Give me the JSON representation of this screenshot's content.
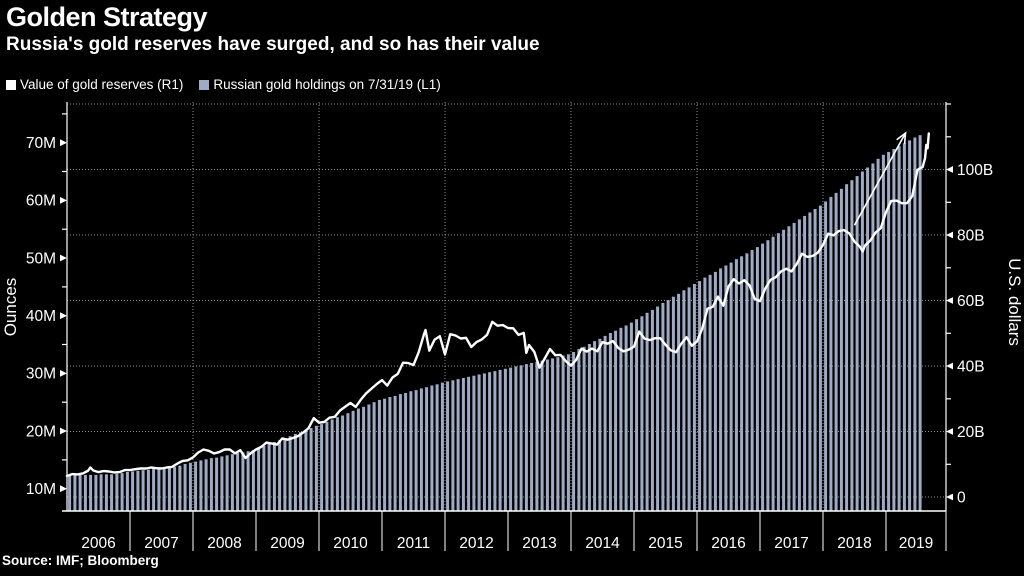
{
  "header": {
    "title": "Golden Strategy",
    "subtitle": "Russia's gold reserves have surged, and so has their value"
  },
  "legend": [
    {
      "label": "Value of gold reserves (R1)",
      "swatch": "#ffffff"
    },
    {
      "label": "Russian gold holdings on 7/31/19 (L1)",
      "swatch": "#9fabc4"
    }
  ],
  "source": "Source: IMF; Bloomberg",
  "colors": {
    "background": "#000000",
    "bar": "#9fabc4",
    "line": "#ffffff",
    "grid": "#8f8f8f",
    "axis": "#ffffff"
  },
  "chart_data": {
    "type": "combo",
    "title": "Golden Strategy",
    "subtitle": "Russia's gold reserves have surged, and so has their value",
    "legend_position": "top-left",
    "grid": "dotted",
    "x_axis": {
      "years": [
        2006,
        2007,
        2008,
        2009,
        2010,
        2011,
        2012,
        2013,
        2014,
        2015,
        2016,
        2017,
        2018,
        2019
      ],
      "gridline_years": [
        2008,
        2010,
        2012,
        2014,
        2016,
        2018
      ],
      "range": [
        2006.0,
        2019.95
      ]
    },
    "left_axis": {
      "label": "Ounces",
      "unit": "million troy ounces",
      "major_ticks": [
        {
          "v": 10,
          "label": "10M"
        },
        {
          "v": 20,
          "label": "20M"
        },
        {
          "v": 30,
          "label": "30M"
        },
        {
          "v": 40,
          "label": "40M"
        },
        {
          "v": 50,
          "label": "50M"
        },
        {
          "v": 60,
          "label": "60M"
        },
        {
          "v": 70,
          "label": "70M"
        }
      ],
      "minor_ticks": [
        15,
        25,
        35,
        45,
        55,
        65,
        75
      ]
    },
    "right_axis": {
      "label": "U.S. dollars",
      "unit": "billion USD",
      "major_ticks": [
        {
          "v": 0,
          "label": "0"
        },
        {
          "v": 20,
          "label": "20B"
        },
        {
          "v": 40,
          "label": "40B"
        },
        {
          "v": 60,
          "label": "60B"
        },
        {
          "v": 80,
          "label": "80B"
        },
        {
          "v": 100,
          "label": "100B"
        }
      ],
      "minor_ticks": [
        10,
        30,
        50,
        70,
        90,
        110,
        120
      ],
      "gridline_values": [
        0,
        20,
        40,
        60,
        80,
        100,
        120
      ]
    },
    "series": [
      {
        "name": "Russian gold holdings on 7/31/19 (L1)",
        "type": "bar",
        "axis": "left",
        "color": "#9fabc4",
        "start_year": 2006,
        "interval": "monthly",
        "values": [
          12.3,
          12.3,
          12.4,
          12.4,
          12.4,
          12.4,
          12.5,
          12.5,
          12.5,
          12.6,
          12.7,
          12.9,
          13.0,
          13.1,
          13.2,
          13.3,
          13.4,
          13.4,
          13.5,
          13.7,
          13.8,
          14.0,
          14.3,
          14.5,
          14.7,
          14.9,
          15.1,
          15.3,
          15.4,
          15.6,
          15.8,
          16.0,
          16.2,
          16.3,
          16.5,
          16.7,
          17.1,
          17.4,
          17.8,
          18.1,
          18.4,
          18.8,
          19.1,
          19.5,
          19.8,
          20.2,
          20.5,
          20.9,
          21.2,
          21.6,
          22.0,
          22.4,
          22.7,
          23.1,
          23.5,
          23.9,
          24.2,
          24.6,
          25.0,
          25.4,
          25.6,
          25.9,
          26.1,
          26.4,
          26.6,
          26.9,
          27.1,
          27.4,
          27.6,
          27.9,
          28.1,
          28.4,
          28.6,
          28.8,
          29.0,
          29.2,
          29.4,
          29.6,
          29.8,
          30.0,
          30.2,
          30.4,
          30.6,
          30.8,
          31.0,
          31.2,
          31.4,
          31.6,
          31.8,
          32.0,
          32.2,
          32.4,
          32.6,
          32.8,
          33.1,
          33.3,
          33.7,
          34.2,
          34.6,
          35.1,
          35.6,
          36.0,
          36.5,
          37.0,
          37.4,
          37.9,
          38.3,
          38.8,
          39.4,
          39.9,
          40.5,
          41.0,
          41.6,
          42.2,
          42.7,
          43.3,
          43.8,
          44.4,
          44.9,
          45.5,
          46.0,
          46.6,
          47.1,
          47.6,
          48.2,
          48.7,
          49.2,
          49.8,
          50.3,
          50.8,
          51.4,
          51.9,
          52.5,
          53.1,
          53.7,
          54.3,
          54.9,
          55.5,
          56.1,
          56.7,
          57.3,
          57.9,
          58.5,
          59.1,
          59.8,
          60.6,
          61.3,
          62.0,
          62.8,
          63.5,
          64.2,
          65.0,
          65.7,
          66.4,
          67.2,
          67.9,
          68.4,
          68.9,
          69.4,
          69.9,
          70.4,
          70.9,
          71.3
        ]
      },
      {
        "name": "Value of gold reserves (R1)",
        "type": "line",
        "axis": "right",
        "color": "#ffffff",
        "points": [
          [
            2006.0,
            6.4
          ],
          [
            2006.083,
            7.0
          ],
          [
            2006.167,
            6.9
          ],
          [
            2006.25,
            7.2
          ],
          [
            2006.333,
            8.0
          ],
          [
            2006.37,
            9.0
          ],
          [
            2006.417,
            8.1
          ],
          [
            2006.5,
            7.6
          ],
          [
            2006.583,
            7.9
          ],
          [
            2006.667,
            7.8
          ],
          [
            2006.75,
            7.5
          ],
          [
            2006.833,
            7.6
          ],
          [
            2006.917,
            8.2
          ],
          [
            2007.0,
            8.2
          ],
          [
            2007.083,
            8.5
          ],
          [
            2007.167,
            8.7
          ],
          [
            2007.25,
            8.7
          ],
          [
            2007.333,
            9.0
          ],
          [
            2007.417,
            8.8
          ],
          [
            2007.5,
            8.7
          ],
          [
            2007.583,
            9.0
          ],
          [
            2007.667,
            9.2
          ],
          [
            2007.75,
            10.2
          ],
          [
            2007.833,
            11.0
          ],
          [
            2007.917,
            11.2
          ],
          [
            2008.0,
            12.1
          ],
          [
            2008.083,
            13.6
          ],
          [
            2008.167,
            14.5
          ],
          [
            2008.25,
            14.1
          ],
          [
            2008.333,
            13.3
          ],
          [
            2008.417,
            13.7
          ],
          [
            2008.5,
            14.5
          ],
          [
            2008.583,
            14.5
          ],
          [
            2008.667,
            13.3
          ],
          [
            2008.75,
            14.3
          ],
          [
            2008.833,
            11.9
          ],
          [
            2008.917,
            13.4
          ],
          [
            2009.0,
            14.5
          ],
          [
            2009.083,
            15.3
          ],
          [
            2009.167,
            16.6
          ],
          [
            2009.25,
            16.3
          ],
          [
            2009.333,
            16.0
          ],
          [
            2009.417,
            17.9
          ],
          [
            2009.5,
            17.5
          ],
          [
            2009.583,
            18.0
          ],
          [
            2009.667,
            18.6
          ],
          [
            2009.75,
            19.7
          ],
          [
            2009.833,
            21.0
          ],
          [
            2009.917,
            24.1
          ],
          [
            2010.0,
            22.7
          ],
          [
            2010.083,
            22.9
          ],
          [
            2010.167,
            24.2
          ],
          [
            2010.25,
            24.5
          ],
          [
            2010.333,
            26.4
          ],
          [
            2010.417,
            27.6
          ],
          [
            2010.5,
            28.7
          ],
          [
            2010.583,
            27.5
          ],
          [
            2010.667,
            29.8
          ],
          [
            2010.75,
            31.7
          ],
          [
            2010.833,
            33.1
          ],
          [
            2010.917,
            34.5
          ],
          [
            2011.0,
            35.7
          ],
          [
            2011.083,
            34.0
          ],
          [
            2011.167,
            36.5
          ],
          [
            2011.25,
            37.6
          ],
          [
            2011.333,
            41.0
          ],
          [
            2011.417,
            40.9
          ],
          [
            2011.5,
            40.3
          ],
          [
            2011.583,
            44.2
          ],
          [
            2011.667,
            49.7
          ],
          [
            2011.69,
            51.0
          ],
          [
            2011.75,
            44.7
          ],
          [
            2011.833,
            48.0
          ],
          [
            2011.917,
            49.1
          ],
          [
            2012.0,
            43.5
          ],
          [
            2012.083,
            49.7
          ],
          [
            2012.167,
            49.3
          ],
          [
            2012.25,
            48.4
          ],
          [
            2012.333,
            48.6
          ],
          [
            2012.417,
            45.8
          ],
          [
            2012.5,
            47.3
          ],
          [
            2012.583,
            48.1
          ],
          [
            2012.667,
            49.5
          ],
          [
            2012.75,
            53.5
          ],
          [
            2012.833,
            52.3
          ],
          [
            2012.917,
            52.5
          ],
          [
            2013.0,
            51.6
          ],
          [
            2013.083,
            51.5
          ],
          [
            2013.167,
            49.5
          ],
          [
            2013.25,
            50.1
          ],
          [
            2013.29,
            44.0
          ],
          [
            2013.333,
            46.4
          ],
          [
            2013.417,
            44.3
          ],
          [
            2013.5,
            39.5
          ],
          [
            2013.583,
            42.3
          ],
          [
            2013.667,
            45.2
          ],
          [
            2013.75,
            43.3
          ],
          [
            2013.833,
            43.4
          ],
          [
            2013.917,
            41.5
          ],
          [
            2014.0,
            40.1
          ],
          [
            2014.083,
            41.9
          ],
          [
            2014.167,
            45.3
          ],
          [
            2014.25,
            44.4
          ],
          [
            2014.333,
            45.3
          ],
          [
            2014.417,
            44.5
          ],
          [
            2014.5,
            47.3
          ],
          [
            2014.583,
            46.8
          ],
          [
            2014.667,
            47.6
          ],
          [
            2014.75,
            45.5
          ],
          [
            2014.833,
            44.5
          ],
          [
            2014.917,
            45.0
          ],
          [
            2015.0,
            45.9
          ],
          [
            2015.083,
            50.5
          ],
          [
            2015.167,
            48.4
          ],
          [
            2015.25,
            47.9
          ],
          [
            2015.333,
            48.5
          ],
          [
            2015.417,
            48.5
          ],
          [
            2015.5,
            46.5
          ],
          [
            2015.583,
            44.8
          ],
          [
            2015.667,
            44.2
          ],
          [
            2015.75,
            46.8
          ],
          [
            2015.833,
            48.8
          ],
          [
            2015.917,
            46.2
          ],
          [
            2016.0,
            47.5
          ],
          [
            2016.083,
            51.4
          ],
          [
            2016.167,
            57.5
          ],
          [
            2016.25,
            58.1
          ],
          [
            2016.333,
            61.2
          ],
          [
            2016.417,
            58.4
          ],
          [
            2016.5,
            64.3
          ],
          [
            2016.583,
            66.5
          ],
          [
            2016.667,
            65.2
          ],
          [
            2016.75,
            66.2
          ],
          [
            2016.833,
            64.6
          ],
          [
            2016.917,
            60.5
          ],
          [
            2017.0,
            59.8
          ],
          [
            2017.083,
            63.6
          ],
          [
            2017.167,
            66.3
          ],
          [
            2017.25,
            67.1
          ],
          [
            2017.333,
            68.9
          ],
          [
            2017.417,
            69.7
          ],
          [
            2017.5,
            68.9
          ],
          [
            2017.583,
            71.1
          ],
          [
            2017.667,
            74.3
          ],
          [
            2017.75,
            73.3
          ],
          [
            2017.833,
            73.6
          ],
          [
            2017.917,
            74.6
          ],
          [
            2018.0,
            77.0
          ],
          [
            2018.083,
            80.4
          ],
          [
            2018.167,
            79.9
          ],
          [
            2018.25,
            81.2
          ],
          [
            2018.333,
            81.5
          ],
          [
            2018.417,
            80.5
          ],
          [
            2018.5,
            78.0
          ],
          [
            2018.583,
            76.5
          ],
          [
            2018.63,
            75.0
          ],
          [
            2018.667,
            76.8
          ],
          [
            2018.75,
            78.3
          ],
          [
            2018.833,
            80.7
          ],
          [
            2018.917,
            82.1
          ],
          [
            2019.0,
            87.0
          ],
          [
            2019.083,
            90.4
          ],
          [
            2019.167,
            90.5
          ],
          [
            2019.25,
            89.7
          ],
          [
            2019.333,
            89.7
          ],
          [
            2019.417,
            91.9
          ],
          [
            2019.5,
            99.9
          ],
          [
            2019.583,
            100.8
          ],
          [
            2019.62,
            103.5
          ],
          [
            2019.64,
            107.5
          ],
          [
            2019.66,
            106.5
          ],
          [
            2019.68,
            111.0
          ]
        ]
      }
    ],
    "annotation": {
      "type": "arrow",
      "from": [
        2018.5,
        83.0
      ],
      "to": [
        2019.31,
        111.1
      ],
      "color": "#ffffff"
    }
  }
}
